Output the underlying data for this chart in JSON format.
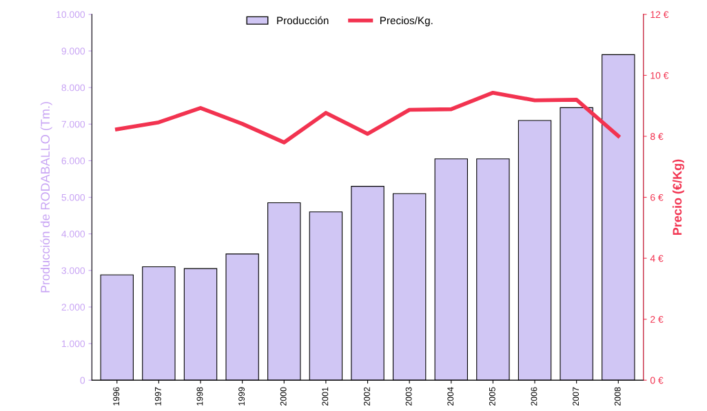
{
  "chart_data": {
    "type": "bar",
    "categories": [
      "1996",
      "1997",
      "1998",
      "1999",
      "2000",
      "2001",
      "2002",
      "2003",
      "2004",
      "2005",
      "2006",
      "2007",
      "2008"
    ],
    "series": [
      {
        "name": "Producción",
        "color": "#d0c6f4",
        "values": [
          2880,
          3100,
          3050,
          3450,
          4850,
          4600,
          5300,
          5100,
          6050,
          6050,
          7100,
          7450,
          8900
        ]
      },
      {
        "name": "Precios/Kg.",
        "type": "line",
        "axis": "y2",
        "color": "#f23350",
        "values": [
          8.23,
          8.46,
          8.93,
          8.41,
          7.8,
          8.77,
          8.08,
          8.87,
          8.89,
          9.43,
          9.18,
          9.2,
          8.01
        ]
      }
    ],
    "ylabel": "Producción de RODABALLO (Tm.)",
    "y2label": "Precio (€/Kg)",
    "ylim": [
      0,
      10000
    ],
    "yticks": [
      {
        "value": 0,
        "label": "0"
      },
      {
        "value": 1000,
        "label": "1.000"
      },
      {
        "value": 2000,
        "label": "2.000"
      },
      {
        "value": 3000,
        "label": "3.000"
      },
      {
        "value": 4000,
        "label": "4.000"
      },
      {
        "value": 5000,
        "label": "5.000"
      },
      {
        "value": 6000,
        "label": "6.000"
      },
      {
        "value": 7000,
        "label": "7.000"
      },
      {
        "value": 8000,
        "label": "8.000"
      },
      {
        "value": 9000,
        "label": "9.000"
      },
      {
        "value": 10000,
        "label": "10.000"
      }
    ],
    "y2lim": [
      0,
      12
    ],
    "y2ticks": [
      {
        "value": 0,
        "label": "0 €"
      },
      {
        "value": 2,
        "label": "2 €"
      },
      {
        "value": 4,
        "label": "4 €"
      },
      {
        "value": 6,
        "label": "6 €"
      },
      {
        "value": 8,
        "label": "8 €"
      },
      {
        "value": 10,
        "label": "10 €"
      },
      {
        "value": 12,
        "label": "12 €"
      }
    ],
    "legend": "top",
    "grid": false,
    "marker": "none",
    "line_style": "solid"
  }
}
